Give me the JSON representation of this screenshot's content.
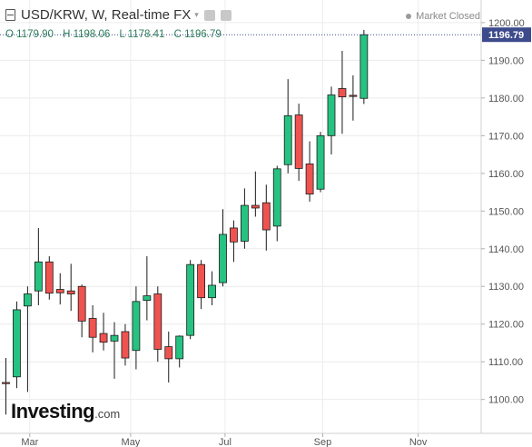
{
  "header": {
    "title": "USD/KRW, W, Real-time FX",
    "status": "Market Closed",
    "ohlc": {
      "o": "O 1179.90",
      "h": "H 1198.06",
      "l": "L 1178.41",
      "c": "C 1196.79"
    }
  },
  "logo": {
    "main": "Investing",
    "suffix": ".com"
  },
  "colors": {
    "up": "#26c281",
    "down": "#ef5350",
    "outline": "#1a1a1a",
    "grid": "#ececec",
    "last_price": "#3d4a8c"
  },
  "chart_data": {
    "type": "candlestick",
    "last_price_label": "1196.79",
    "ylim": [
      1091,
      1206
    ],
    "y_ticks": [
      1100,
      1110,
      1120,
      1130,
      1140,
      1150,
      1160,
      1170,
      1180,
      1190,
      1200
    ],
    "y_tick_labels": [
      "1100.00",
      "1110.00",
      "1120.00",
      "1130.00",
      "1140.00",
      "1150.00",
      "1160.00",
      "1170.00",
      "1180.00",
      "1190.00",
      "1200.00"
    ],
    "x_ticks": [
      {
        "label": "Mar",
        "index": 2.2
      },
      {
        "label": "May",
        "index": 11.5
      },
      {
        "label": "Jul",
        "index": 20.2
      },
      {
        "label": "Sep",
        "index": 29.2
      },
      {
        "label": "Nov",
        "index": 38.0
      }
    ],
    "candles": [
      {
        "o": 1104.5,
        "h": 1111.0,
        "l": 1096.0,
        "c": 1104.2
      },
      {
        "o": 1106.0,
        "h": 1126.0,
        "l": 1103.0,
        "c": 1123.8
      },
      {
        "o": 1124.8,
        "h": 1130.0,
        "l": 1102.0,
        "c": 1128.0
      },
      {
        "o": 1128.8,
        "h": 1145.5,
        "l": 1125.0,
        "c": 1136.5
      },
      {
        "o": 1136.5,
        "h": 1138.0,
        "l": 1126.5,
        "c": 1128.2
      },
      {
        "o": 1129.2,
        "h": 1133.5,
        "l": 1125.2,
        "c": 1128.3
      },
      {
        "o": 1128.8,
        "h": 1136.0,
        "l": 1123.5,
        "c": 1128.0
      },
      {
        "o": 1130.0,
        "h": 1130.5,
        "l": 1116.5,
        "c": 1120.8
      },
      {
        "o": 1121.5,
        "h": 1125.0,
        "l": 1112.5,
        "c": 1116.5
      },
      {
        "o": 1117.5,
        "h": 1123.0,
        "l": 1113.0,
        "c": 1115.2
      },
      {
        "o": 1115.5,
        "h": 1120.5,
        "l": 1105.5,
        "c": 1117.0
      },
      {
        "o": 1118.0,
        "h": 1120.0,
        "l": 1109.0,
        "c": 1111.0
      },
      {
        "o": 1113.0,
        "h": 1130.0,
        "l": 1108.0,
        "c": 1126.0
      },
      {
        "o": 1126.3,
        "h": 1138.0,
        "l": 1121.0,
        "c": 1127.5
      },
      {
        "o": 1128.0,
        "h": 1130.0,
        "l": 1110.0,
        "c": 1113.3
      },
      {
        "o": 1114.0,
        "h": 1118.0,
        "l": 1104.5,
        "c": 1110.8
      },
      {
        "o": 1110.8,
        "h": 1117.0,
        "l": 1108.5,
        "c": 1116.8
      },
      {
        "o": 1117.0,
        "h": 1137.0,
        "l": 1116.0,
        "c": 1135.8
      },
      {
        "o": 1135.8,
        "h": 1137.0,
        "l": 1124.0,
        "c": 1127.0
      },
      {
        "o": 1127.0,
        "h": 1134.0,
        "l": 1125.0,
        "c": 1130.3
      },
      {
        "o": 1131.0,
        "h": 1150.5,
        "l": 1130.0,
        "c": 1143.8
      },
      {
        "o": 1145.5,
        "h": 1147.5,
        "l": 1136.5,
        "c": 1141.8
      },
      {
        "o": 1142.0,
        "h": 1156.0,
        "l": 1140.0,
        "c": 1151.5
      },
      {
        "o": 1151.5,
        "h": 1160.5,
        "l": 1148.5,
        "c": 1150.8
      },
      {
        "o": 1152.2,
        "h": 1157.0,
        "l": 1139.5,
        "c": 1145.0
      },
      {
        "o": 1146.0,
        "h": 1162.0,
        "l": 1142.0,
        "c": 1161.2
      },
      {
        "o": 1162.3,
        "h": 1185.0,
        "l": 1160.0,
        "c": 1175.3
      },
      {
        "o": 1175.5,
        "h": 1178.5,
        "l": 1158.0,
        "c": 1161.3
      },
      {
        "o": 1162.5,
        "h": 1168.5,
        "l": 1152.5,
        "c": 1154.5
      },
      {
        "o": 1155.8,
        "h": 1171.0,
        "l": 1155.0,
        "c": 1170.0
      },
      {
        "o": 1170.0,
        "h": 1183.0,
        "l": 1165.0,
        "c": 1180.8
      },
      {
        "o": 1182.5,
        "h": 1192.5,
        "l": 1170.5,
        "c": 1180.3
      },
      {
        "o": 1180.7,
        "h": 1186.0,
        "l": 1174.0,
        "c": 1180.5
      },
      {
        "o": 1179.9,
        "h": 1198.06,
        "l": 1178.41,
        "c": 1196.79
      }
    ]
  }
}
